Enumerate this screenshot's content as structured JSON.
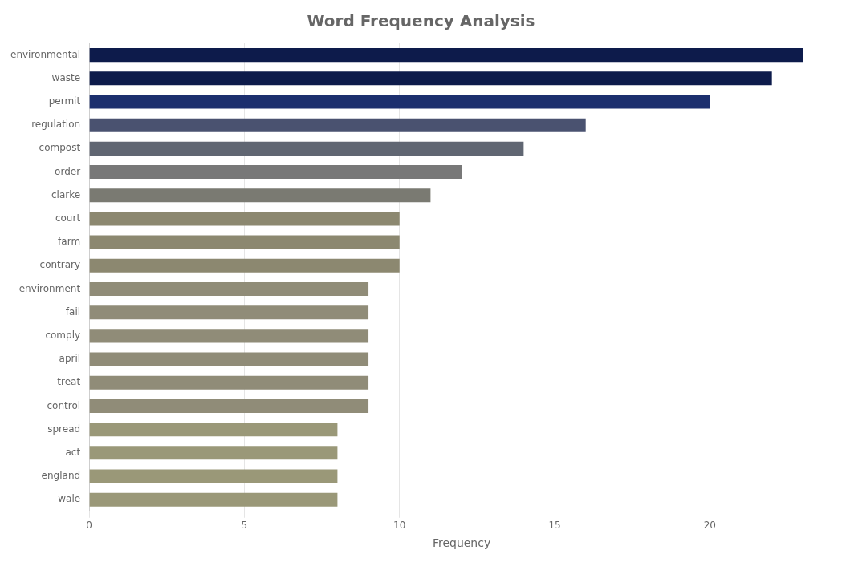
{
  "chart_data": {
    "type": "bar",
    "orientation": "horizontal",
    "title": "Word Frequency Analysis",
    "categories": [
      "environmental",
      "waste",
      "permit",
      "regulation",
      "compost",
      "order",
      "clarke",
      "court",
      "farm",
      "contrary",
      "environment",
      "fail",
      "comply",
      "april",
      "treat",
      "control",
      "spread",
      "act",
      "england",
      "wale"
    ],
    "values": [
      23,
      22,
      20,
      16,
      14,
      12,
      11,
      10,
      10,
      10,
      9,
      9,
      9,
      9,
      9,
      9,
      8,
      8,
      8,
      8
    ],
    "colors": [
      "#0d1b4b",
      "#0d1b4b",
      "#1c2f6e",
      "#4a5270",
      "#606672",
      "#787878",
      "#7a7a72",
      "#8c8870",
      "#8c8870",
      "#8c8870",
      "#908c78",
      "#908c78",
      "#908c78",
      "#908c78",
      "#908c78",
      "#908c78",
      "#9a9878",
      "#9a9878",
      "#9a9878",
      "#9a9878"
    ],
    "xlabel": "Frequency",
    "xlim": [
      0,
      24
    ],
    "xticks": [
      0,
      5,
      10,
      15,
      20
    ],
    "grid": true
  }
}
